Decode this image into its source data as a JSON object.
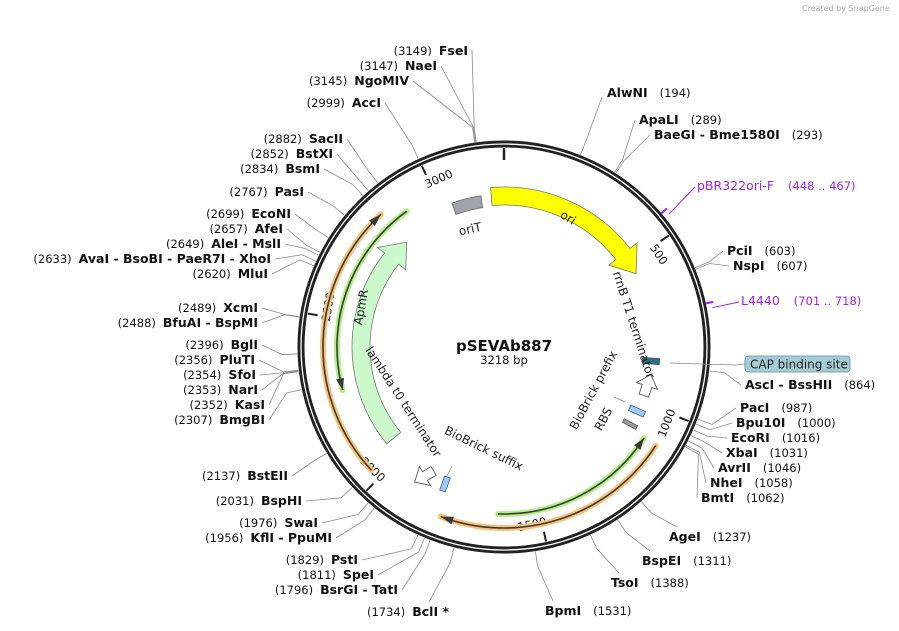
{
  "watermark": "Created by SnapGene",
  "plasmid": {
    "name": "pSEVAb887",
    "size_label": "3218 bp",
    "length": 3218
  },
  "ticks": [
    "500",
    "1000",
    "1500",
    "2000",
    "2500",
    "3000"
  ],
  "enzymes": [
    {
      "name": "AlwNI",
      "pos": "(194)",
      "bp": 194
    },
    {
      "name": "ApaLI",
      "pos": "(289)",
      "bp": 289
    },
    {
      "name": "BaeGI  - Bme1580I",
      "pos": "(293)",
      "bp": 293
    },
    {
      "name": "PciI",
      "pos": "(603)",
      "bp": 603
    },
    {
      "name": "NspI",
      "pos": "(607)",
      "bp": 607
    },
    {
      "name": "AscI  - BssHII",
      "pos": "(864)",
      "bp": 864
    },
    {
      "name": "PacI",
      "pos": "(987)",
      "bp": 987
    },
    {
      "name": "Bpu10I",
      "pos": "(1000)",
      "bp": 1000
    },
    {
      "name": "EcoRI",
      "pos": "(1016)",
      "bp": 1016
    },
    {
      "name": "XbaI",
      "pos": "(1031)",
      "bp": 1031
    },
    {
      "name": "AvrII",
      "pos": "(1046)",
      "bp": 1046
    },
    {
      "name": "NheI",
      "pos": "(1058)",
      "bp": 1058
    },
    {
      "name": "BmtI",
      "pos": "(1062)",
      "bp": 1062
    },
    {
      "name": "AgeI",
      "pos": "(1237)",
      "bp": 1237
    },
    {
      "name": "BspEI",
      "pos": "(1311)",
      "bp": 1311
    },
    {
      "name": "TsoI",
      "pos": "(1388)",
      "bp": 1388
    },
    {
      "name": "BpmI",
      "pos": "(1531)",
      "bp": 1531
    },
    {
      "name": "FseI",
      "pos": "(3149)",
      "bp": 3149
    },
    {
      "name": "NaeI",
      "pos": "(3147)",
      "bp": 3147
    },
    {
      "name": "NgoMIV",
      "pos": "(3145)",
      "bp": 3145
    },
    {
      "name": "AccI",
      "pos": "(2999)",
      "bp": 2999
    },
    {
      "name": "SacII",
      "pos": "(2882)",
      "bp": 2882
    },
    {
      "name": "BstXI",
      "pos": "(2852)",
      "bp": 2852
    },
    {
      "name": "BsmI",
      "pos": "(2834)",
      "bp": 2834
    },
    {
      "name": "PasI",
      "pos": "(2767)",
      "bp": 2767
    },
    {
      "name": "EcoNI",
      "pos": "(2699)",
      "bp": 2699
    },
    {
      "name": "AfeI",
      "pos": "(2657)",
      "bp": 2657
    },
    {
      "name": "AleI  - MslI",
      "pos": "(2649)",
      "bp": 2649
    },
    {
      "name": "AvaI  - BsoBI  - PaeR7I  - XhoI",
      "pos": "(2633)",
      "bp": 2633
    },
    {
      "name": "MluI",
      "pos": "(2620)",
      "bp": 2620
    },
    {
      "name": "XcmI",
      "pos": "(2489)",
      "bp": 2489
    },
    {
      "name": "BfuAI  - BspMI",
      "pos": "(2488)",
      "bp": 2488
    },
    {
      "name": "BglI",
      "pos": "(2396)",
      "bp": 2396
    },
    {
      "name": "PluTI",
      "pos": "(2356)",
      "bp": 2356
    },
    {
      "name": "SfoI",
      "pos": "(2354)",
      "bp": 2354
    },
    {
      "name": "NarI",
      "pos": "(2353)",
      "bp": 2353
    },
    {
      "name": "KasI",
      "pos": "(2352)",
      "bp": 2352
    },
    {
      "name": "BmgBI",
      "pos": "(2307)",
      "bp": 2307
    },
    {
      "name": "BstEII",
      "pos": "(2137)",
      "bp": 2137
    },
    {
      "name": "BspHI",
      "pos": "(2031)",
      "bp": 2031
    },
    {
      "name": "SwaI",
      "pos": "(1976)",
      "bp": 1976
    },
    {
      "name": "KflI  - PpuMI",
      "pos": "(1956)",
      "bp": 1956
    },
    {
      "name": "PstI",
      "pos": "(1829)",
      "bp": 1829
    },
    {
      "name": "SpeI",
      "pos": "(1811)",
      "bp": 1811
    },
    {
      "name": "BsrGI  - TatI",
      "pos": "(1796)",
      "bp": 1796
    },
    {
      "name": "BclI *",
      "pos": "(1734)",
      "bp": 1734
    }
  ],
  "primers": [
    {
      "name": "pBR322ori-F",
      "range": "(448 .. 467)",
      "bp": 457
    },
    {
      "name": "L4440",
      "range": "(701 .. 718)",
      "bp": 709
    }
  ],
  "features": {
    "ori": {
      "label": "ori",
      "start": 3175,
      "end": 545,
      "color": "#ffff00"
    },
    "oriT": {
      "label": "oriT",
      "start": 3040,
      "end": 3140,
      "color": "#a0a4aa"
    },
    "ApmR": {
      "label": "ApmR",
      "start": 2060,
      "end": 2835,
      "color": "#ccf9cc"
    },
    "rrnB": {
      "label": "rrnB T1 terminator"
    },
    "cap": {
      "label": "CAP binding site",
      "color": "#2a7384"
    },
    "bb_prefix": {
      "label": "BioBrick prefix",
      "color": "#99ccff"
    },
    "rbs": {
      "label": "RBS",
      "color": "#999999"
    },
    "lambda": {
      "label": "lambda t0 terminator"
    },
    "bb_suffix": {
      "label": "BioBrick suffix",
      "color": "#99ccff"
    }
  },
  "orfs": [
    {
      "start": 2030,
      "end": 2835,
      "dir": 1,
      "color": "#f7c27a"
    },
    {
      "start": 2280,
      "end": 2900,
      "dir": -1,
      "color": "#b4ef8a"
    },
    {
      "start": 1100,
      "end": 1627,
      "dir": -1,
      "color": "#b4ef8a"
    },
    {
      "start": 1100,
      "end": 1792,
      "dir": 1,
      "color": "#f7c27a"
    }
  ]
}
